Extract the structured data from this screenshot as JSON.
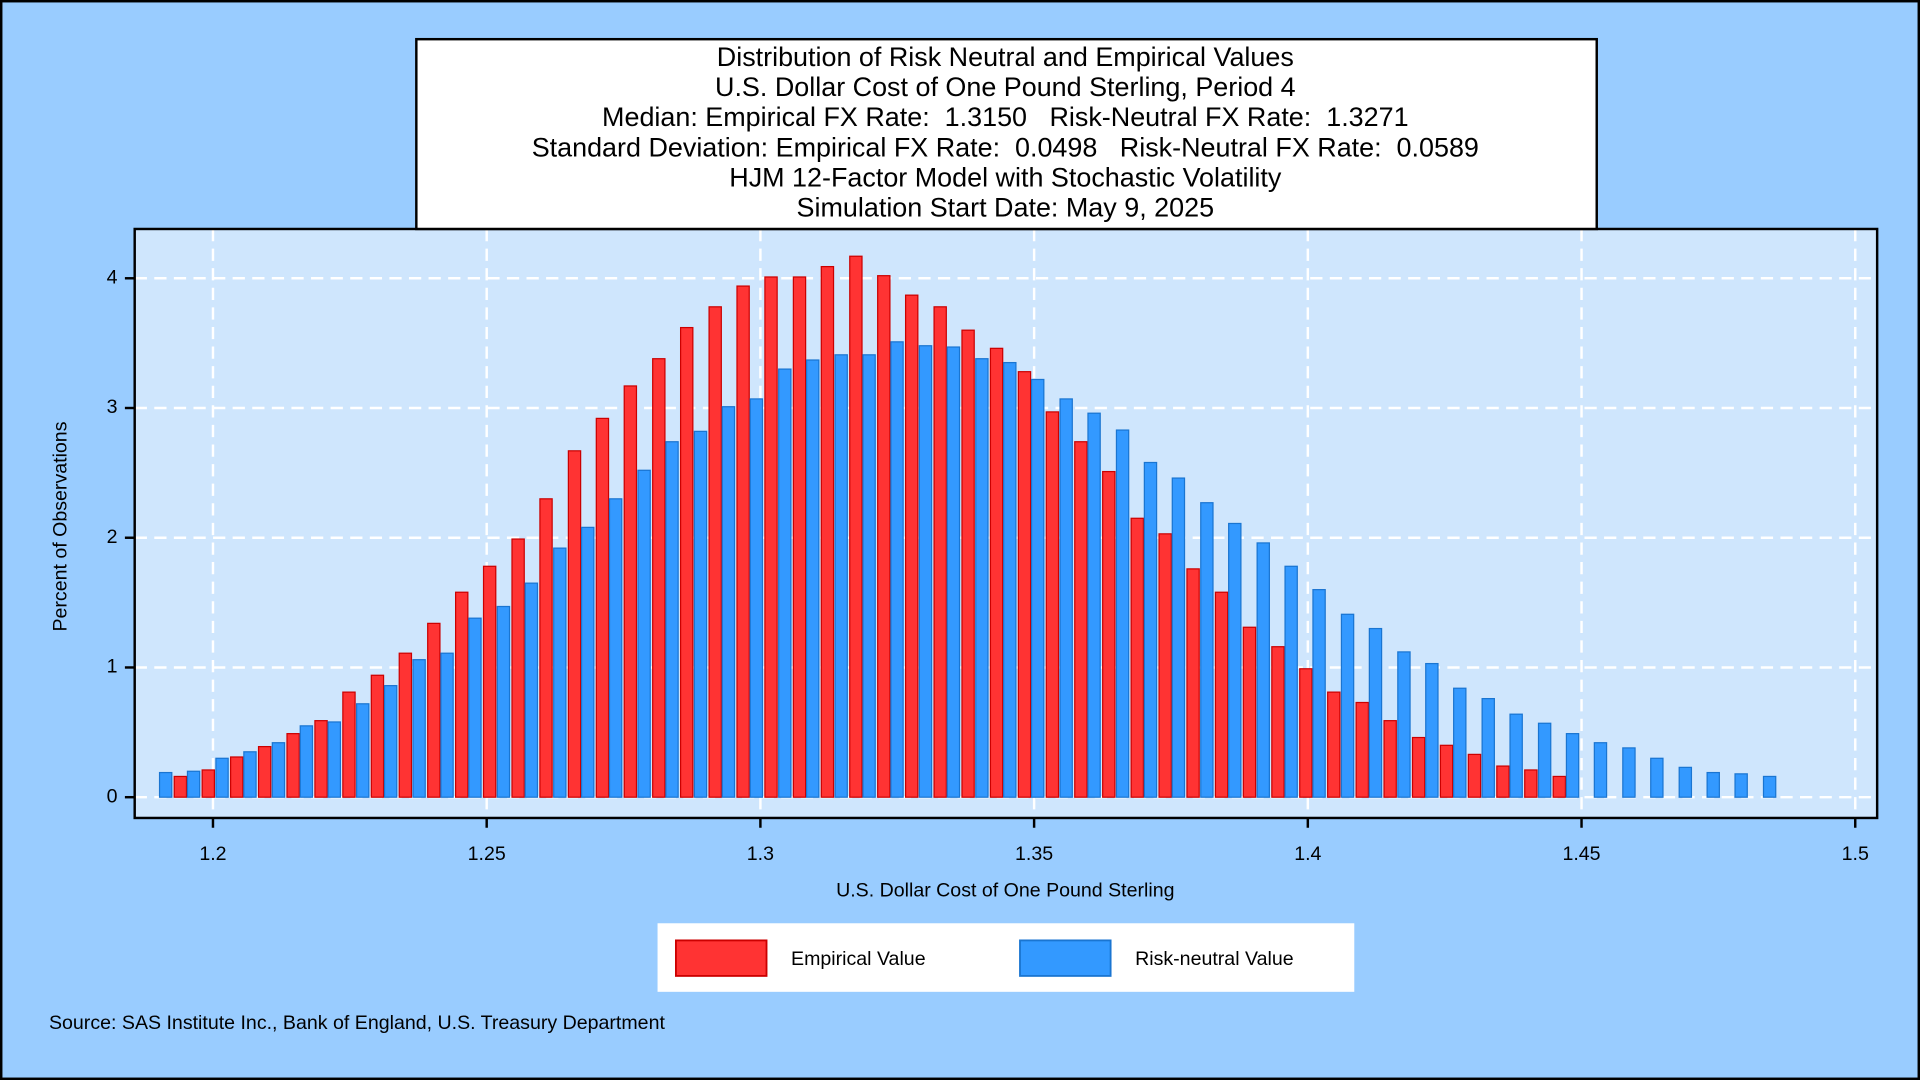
{
  "chart_data": {
    "type": "bar",
    "title_lines": [
      "Distribution of Risk Neutral and Empirical Values",
      "U.S. Dollar Cost of One Pound Sterling, Period 4",
      "Median: Empirical FX Rate:  1.3150   Risk-Neutral FX Rate:  1.3271",
      "Standard Deviation: Empirical FX Rate:  0.0498   Risk-Neutral FX Rate:  0.0589",
      "HJM 12-Factor Model with Stochastic Volatility",
      "Simulation Start Date: May 9, 2025"
    ],
    "x_label": "U.S. Dollar Cost of One Pound Sterling",
    "y_label": "Percent of Observations",
    "source": "Source: SAS Institute Inc., Bank of England, U.S. Treasury Department",
    "x": [
      1.1927,
      1.1978,
      1.203,
      1.2081,
      1.2133,
      1.2184,
      1.2235,
      1.2287,
      1.2338,
      1.239,
      1.2441,
      1.2492,
      1.2544,
      1.2595,
      1.2647,
      1.2698,
      1.2749,
      1.2801,
      1.2852,
      1.2904,
      1.2955,
      1.3006,
      1.3058,
      1.3109,
      1.3161,
      1.3212,
      1.3263,
      1.3315,
      1.3366,
      1.3418,
      1.3469,
      1.352,
      1.3572,
      1.3623,
      1.3675,
      1.3726,
      1.3777,
      1.3829,
      1.388,
      1.3932,
      1.3983,
      1.4034,
      1.4086,
      1.4137,
      1.4189,
      1.424,
      1.4291,
      1.4343,
      1.4394,
      1.4446,
      1.4497,
      1.4548,
      1.46,
      1.4651,
      1.4703,
      1.4754,
      1.4805,
      1.4857
    ],
    "series": [
      {
        "name": "Empirical Value",
        "color": "#ff3333",
        "values": [
          0.16,
          0.21,
          0.31,
          0.39,
          0.49,
          0.59,
          0.81,
          0.94,
          1.11,
          1.34,
          1.58,
          1.78,
          1.99,
          2.3,
          2.67,
          2.92,
          3.17,
          3.38,
          3.62,
          3.78,
          3.94,
          4.01,
          4.01,
          4.09,
          4.17,
          4.02,
          3.87,
          3.78,
          3.6,
          3.46,
          3.28,
          2.97,
          2.74,
          2.51,
          2.15,
          2.03,
          1.76,
          1.58,
          1.31,
          1.16,
          0.99,
          0.81,
          0.73,
          0.59,
          0.46,
          0.4,
          0.33,
          0.24,
          0.21,
          0.16,
          null,
          null,
          null,
          null,
          null,
          null,
          null,
          null
        ]
      },
      {
        "name": "Risk-neutral Value",
        "color": "#3399ff",
        "values": [
          0.19,
          0.2,
          0.3,
          0.35,
          0.42,
          0.55,
          0.58,
          0.72,
          0.86,
          1.06,
          1.11,
          1.38,
          1.47,
          1.65,
          1.92,
          2.08,
          2.3,
          2.52,
          2.74,
          2.82,
          3.01,
          3.07,
          3.3,
          3.37,
          3.41,
          3.41,
          3.51,
          3.48,
          3.47,
          3.38,
          3.35,
          3.22,
          3.07,
          2.96,
          2.83,
          2.58,
          2.46,
          2.27,
          2.11,
          1.96,
          1.78,
          1.6,
          1.41,
          1.3,
          1.12,
          1.03,
          0.84,
          0.76,
          0.64,
          0.57,
          0.49,
          0.42,
          0.38,
          0.3,
          0.23,
          0.19,
          0.18,
          0.16
        ]
      }
    ],
    "xlim": [
      1.1857,
      1.504
    ],
    "ylim": [
      -0.16,
      4.38
    ],
    "xticks": [
      1.2,
      1.25,
      1.3,
      1.35,
      1.4,
      1.45,
      1.5
    ],
    "yticks": [
      0,
      1,
      2,
      3,
      4
    ],
    "grid": true
  }
}
